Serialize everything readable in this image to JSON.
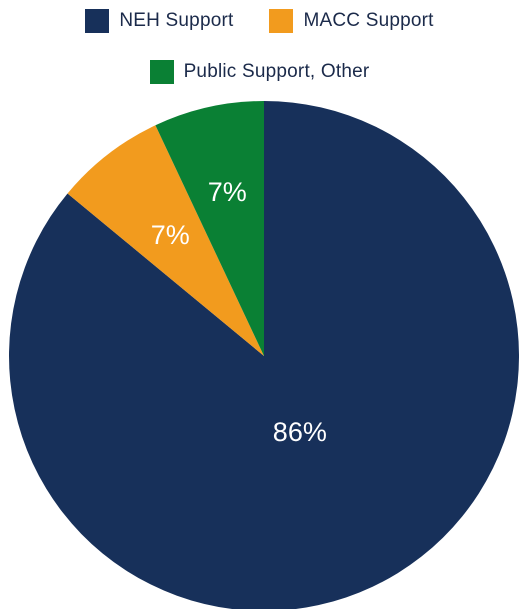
{
  "chart_data": {
    "type": "pie",
    "categories": [
      "NEH Support",
      "MACC Support",
      "Public Support, Other"
    ],
    "values": [
      86,
      7,
      7
    ],
    "data_labels": [
      "86%",
      "7%",
      "7%"
    ],
    "colors": [
      "#17305a",
      "#f29b1e",
      "#0a8034"
    ],
    "legend_position": "top",
    "start": "12 o'clock, clockwise",
    "legend": [
      {
        "label": "NEH Support",
        "color": "#17305a"
      },
      {
        "label": "MACC Support",
        "color": "#f29b1e"
      },
      {
        "label": "Public Support, Other",
        "color": "#0a8034"
      }
    ]
  }
}
